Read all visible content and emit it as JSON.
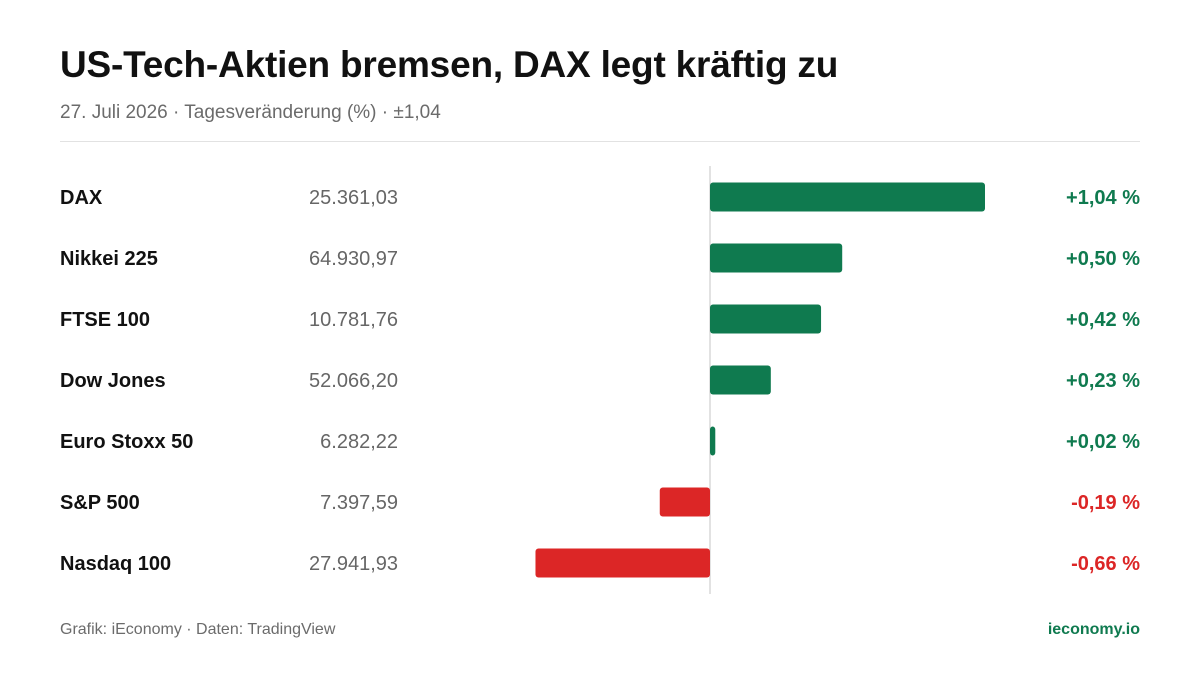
{
  "header": {
    "title": "US-Tech-Aktien bremsen, DAX legt kräftig zu",
    "subtitle": "27. Juli 2026 · Tagesveränderung (%) · ±1,04"
  },
  "footer": {
    "source": "Grafik: iEconomy · Daten: TradingView",
    "brand": "ieconomy.io"
  },
  "colors": {
    "positive": "#0f7a4f",
    "negative": "#dc2626",
    "axis": "#d9d9d9"
  },
  "chart_data": {
    "type": "bar",
    "orientation": "horizontal",
    "title": "US-Tech-Aktien bremsen, DAX legt kräftig zu",
    "subtitle": "27. Juli 2026 · Tagesveränderung (%) · ±1,04",
    "xlim": [
      -1.04,
      1.04
    ],
    "grid": false,
    "legend": "none",
    "categories": [
      "DAX",
      "Nikkei 225",
      "FTSE 100",
      "Dow Jones",
      "Euro Stoxx 50",
      "S&P 500",
      "Nasdaq 100"
    ],
    "levels": [
      "25.361,03",
      "64.930,97",
      "10.781,76",
      "52.066,20",
      "6.282,22",
      "7.397,59",
      "27.941,93"
    ],
    "values": [
      1.04,
      0.5,
      0.42,
      0.23,
      0.02,
      -0.19,
      -0.66
    ],
    "labels": [
      "+1,04 %",
      "+0,50 %",
      "+0,42 %",
      "+0,23 %",
      "+0,02 %",
      "-0,19 %",
      "-0,66 %"
    ]
  }
}
